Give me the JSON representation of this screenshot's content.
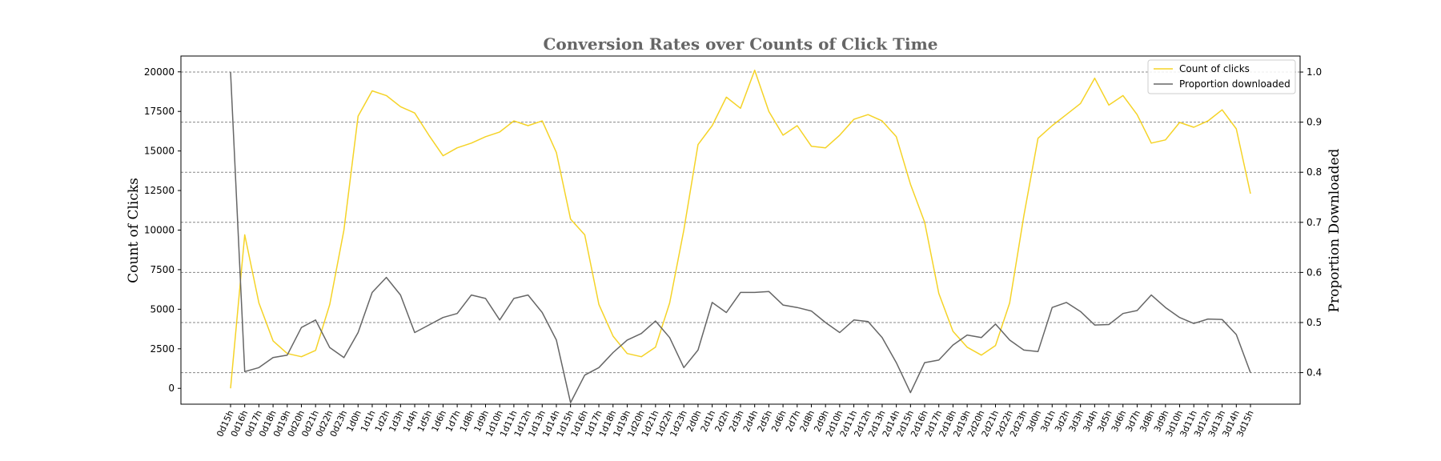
{
  "chart_data": {
    "type": "line",
    "title": "Conversion Rates over Counts of Click Time",
    "ylabel_left": "Count of Clicks",
    "ylabel_right": "Proportion Downloaded",
    "ylim_left": [
      -1000,
      21000
    ],
    "yticks_left": [
      0,
      2500,
      5000,
      7500,
      10000,
      12500,
      15000,
      17500,
      20000
    ],
    "ylim_right": [
      0.337,
      1.032
    ],
    "yticks_right": [
      0.4,
      0.5,
      0.6,
      0.7,
      0.8,
      0.9,
      1.0
    ],
    "grid": "horizontal dashed at right-axis ticks",
    "legend_position": "top-right",
    "x": [
      "0d15h",
      "0d16h",
      "0d17h",
      "0d18h",
      "0d19h",
      "0d20h",
      "0d21h",
      "0d22h",
      "0d23h",
      "1d0h",
      "1d1h",
      "1d2h",
      "1d3h",
      "1d4h",
      "1d5h",
      "1d6h",
      "1d7h",
      "1d8h",
      "1d9h",
      "1d10h",
      "1d11h",
      "1d12h",
      "1d13h",
      "1d14h",
      "1d15h",
      "1d16h",
      "1d17h",
      "1d18h",
      "1d19h",
      "1d20h",
      "1d21h",
      "1d22h",
      "1d23h",
      "2d0h",
      "2d1h",
      "2d2h",
      "2d3h",
      "2d4h",
      "2d5h",
      "2d6h",
      "2d7h",
      "2d8h",
      "2d9h",
      "2d10h",
      "2d11h",
      "2d12h",
      "2d13h",
      "2d14h",
      "2d15h",
      "2d16h",
      "2d17h",
      "2d18h",
      "2d19h",
      "2d20h",
      "2d21h",
      "2d22h",
      "2d23h",
      "3d0h",
      "3d1h",
      "3d2h",
      "3d3h",
      "3d4h",
      "3d5h",
      "3d6h",
      "3d7h",
      "3d8h",
      "3d9h",
      "3d10h",
      "3d11h",
      "3d12h",
      "3d13h",
      "3d14h",
      "3d15h"
    ],
    "series": [
      {
        "name": "Count of clicks",
        "axis": "left",
        "color": "#f5d327",
        "values": [
          0,
          9700,
          5400,
          3000,
          2200,
          2000,
          2400,
          5300,
          10000,
          17200,
          18800,
          18500,
          17800,
          17400,
          16000,
          14700,
          15200,
          15500,
          15900,
          16200,
          16900,
          16600,
          16900,
          14900,
          10700,
          9700,
          5300,
          3300,
          2200,
          2000,
          2600,
          5400,
          10000,
          15400,
          16600,
          18400,
          17700,
          20100,
          17500,
          16000,
          16600,
          15300,
          15200,
          16000,
          17000,
          17300,
          16900,
          15900,
          12900,
          10500,
          6000,
          3600,
          2600,
          2100,
          2700,
          5400,
          10900,
          15800,
          16600,
          17300,
          18000,
          19600,
          17900,
          18500,
          17300,
          15500,
          15700,
          16800,
          16500,
          16900,
          17600,
          16400,
          12300
        ]
      },
      {
        "name": "Proportion downloaded",
        "axis": "right",
        "color": "#666666",
        "values": [
          1.0,
          0.402,
          0.41,
          0.43,
          0.435,
          0.49,
          0.505,
          0.45,
          0.43,
          0.48,
          0.56,
          0.59,
          0.555,
          0.48,
          0.495,
          0.51,
          0.518,
          0.555,
          0.548,
          0.505,
          0.548,
          0.555,
          0.52,
          0.465,
          0.34,
          0.395,
          0.41,
          0.44,
          0.465,
          0.478,
          0.503,
          0.47,
          0.41,
          0.445,
          0.54,
          0.52,
          0.56,
          0.56,
          0.562,
          0.535,
          0.53,
          0.523,
          0.5,
          0.48,
          0.505,
          0.502,
          0.47,
          0.42,
          0.36,
          0.42,
          0.425,
          0.455,
          0.475,
          0.47,
          0.497,
          0.465,
          0.445,
          0.442,
          0.53,
          0.54,
          0.522,
          0.495,
          0.496,
          0.518,
          0.524,
          0.555,
          0.53,
          0.51,
          0.498,
          0.507,
          0.506,
          0.476,
          0.4
        ]
      }
    ]
  }
}
